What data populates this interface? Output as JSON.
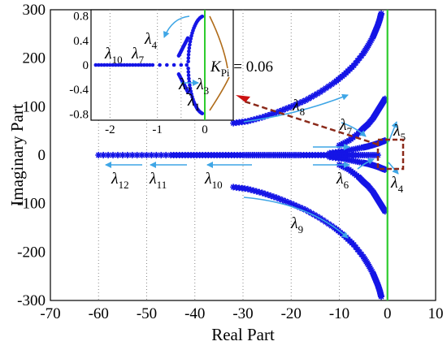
{
  "chart_data": {
    "type": "scatter",
    "title": "",
    "xlabel": "Real Part",
    "ylabel": "Imaginary Part",
    "xlim": [
      -70,
      10
    ],
    "ylim": [
      -300,
      300
    ],
    "x_ticks": [
      "-70",
      "-60",
      "-50",
      "-40",
      "-30",
      "-20",
      "-10",
      "0",
      "10"
    ],
    "y_ticks": [
      "300",
      "200",
      "100",
      "0",
      "-100",
      "-200",
      "-300"
    ],
    "grid": "vertical dotted",
    "colors": {
      "markers": "#1515e6",
      "arrows": "#3fa6e6",
      "reference_line": "#2ecc2e",
      "dashed_box": "#8b2a1a",
      "pointer": "#cc1111"
    },
    "series": [
      {
        "branches": [
          {
            "label": "λ8/λ9",
            "x": [
              -32,
              -29,
              -26,
              -23,
              -20,
              -17,
              -14,
              -11,
              -9,
              -7,
              -5,
              -4,
              -3,
              -2.5,
              -2,
              -1.6,
              -1.3
            ],
            "y": [
              66,
              70,
              78,
              88,
              100,
              113,
              130,
              150,
              166,
              185,
              210,
              226,
              244,
              256,
              268,
              280,
              292
            ]
          },
          {
            "label": "λ5/λ6",
            "x": [
              -10,
              -8,
              -6,
              -5,
              -4,
              -3,
              -2.5,
              -2,
              -1.5,
              -1,
              -0.5
            ],
            "y": [
              20,
              30,
              45,
              55,
              64,
              76,
              84,
              92,
              100,
              108,
              116
            ]
          },
          {
            "label": "λ4/λ7",
            "x": [
              -12,
              -9,
              -7,
              -5,
              -4,
              -3,
              -2,
              -1.5,
              -1,
              -0.5
            ],
            "y": [
              4,
              8,
              12,
              16,
              18,
              21,
              24,
              26,
              28,
              30
            ]
          },
          {
            "label": "λ10–λ12",
            "x": [
              -60,
              -55,
              -50,
              -45,
              -42,
              -39,
              -36,
              -33,
              -30,
              -28,
              -26,
              -24,
              -22,
              -20,
              -18,
              -15,
              -12,
              -9,
              -6,
              -4,
              -2
            ],
            "y": [
              0,
              0,
              0,
              0,
              0,
              0,
              0,
              0,
              0,
              0,
              0,
              0,
              0,
              0,
              0,
              0,
              0,
              0,
              0,
              0,
              0
            ]
          }
        ]
      }
    ],
    "annotations": [
      {
        "text": "λ",
        "sub": "8"
      },
      {
        "text": "λ",
        "sub": "9"
      },
      {
        "text": "λ",
        "sub": "7"
      },
      {
        "text": "λ",
        "sub": "5"
      },
      {
        "text": "λ",
        "sub": "6"
      },
      {
        "text": "λ",
        "sub": "4"
      },
      {
        "text": "λ",
        "sub": "10"
      },
      {
        "text": "λ",
        "sub": "11"
      },
      {
        "text": "λ",
        "sub": "12"
      }
    ],
    "inset": {
      "xlim": [
        -2.4,
        0.6
      ],
      "ylim": [
        -0.9,
        0.9
      ],
      "x_ticks": [
        "-2",
        "-1",
        "0"
      ],
      "y_ticks": [
        "0.8",
        "0.4",
        "0",
        "-0.4",
        "-0.8"
      ],
      "annotations": [
        {
          "text": "λ",
          "sub": "4"
        },
        {
          "text": "λ",
          "sub": "10"
        },
        {
          "text": "λ",
          "sub": "7"
        },
        {
          "text": "λ",
          "sub": "2"
        },
        {
          "text": "λ",
          "sub": "3"
        },
        {
          "text": "λ",
          "sub": "1"
        }
      ],
      "callout": {
        "text": "K",
        "sub": "Pi",
        "value": " = 0.06"
      }
    }
  }
}
